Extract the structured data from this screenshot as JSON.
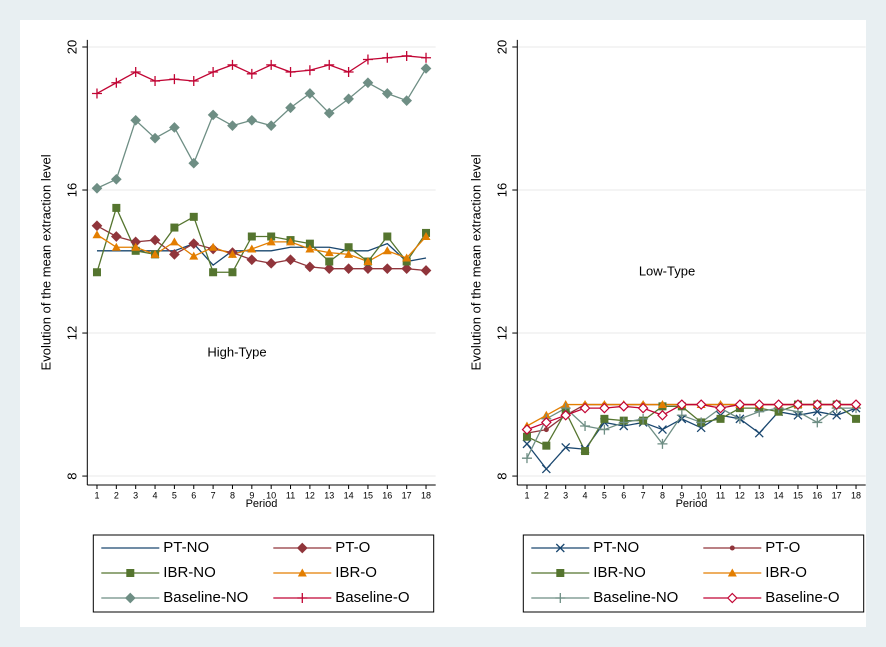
{
  "chart_data": [
    {
      "type": "line",
      "annotation": "High-Type",
      "x_label": "Period",
      "y_label": "Evolution of the mean extraction level",
      "x": [
        1,
        2,
        3,
        4,
        5,
        6,
        7,
        8,
        9,
        10,
        11,
        12,
        13,
        14,
        15,
        16,
        17,
        18
      ],
      "xlim": [
        0.5,
        18.5
      ],
      "xticks": [
        1,
        2,
        3,
        4,
        5,
        6,
        7,
        8,
        9,
        10,
        11,
        12,
        13,
        14,
        15,
        16,
        17,
        18
      ],
      "ylim": [
        7.75,
        20.2
      ],
      "yticks": [
        8,
        12,
        16,
        20
      ],
      "grid": true,
      "series": [
        {
          "name": "PT-NO",
          "color": "#1a476f",
          "marker": "none",
          "values": [
            14.3,
            14.3,
            14.3,
            14.3,
            14.3,
            14.5,
            13.9,
            14.3,
            14.3,
            14.3,
            14.4,
            14.4,
            14.4,
            14.3,
            14.3,
            14.5,
            14.0,
            14.1
          ]
        },
        {
          "name": "PT-O",
          "color": "#90353b",
          "marker": "diamond",
          "values": [
            15.0,
            14.7,
            14.55,
            14.6,
            14.2,
            14.5,
            14.35,
            14.25,
            14.05,
            13.95,
            14.05,
            13.85,
            13.8,
            13.8,
            13.8,
            13.8,
            13.8,
            13.75
          ]
        },
        {
          "name": "IBR-NO",
          "color": "#55752f",
          "marker": "square",
          "values": [
            13.7,
            15.5,
            14.3,
            14.2,
            14.95,
            15.25,
            13.7,
            13.7,
            14.7,
            14.7,
            14.6,
            14.5,
            14.0,
            14.4,
            14.0,
            14.7,
            14.0,
            14.8
          ]
        },
        {
          "name": "IBR-O",
          "color": "#e37e00",
          "marker": "triangle",
          "values": [
            14.75,
            14.4,
            14.4,
            14.2,
            14.55,
            14.15,
            14.4,
            14.2,
            14.35,
            14.55,
            14.55,
            14.35,
            14.25,
            14.2,
            14.0,
            14.3,
            14.1,
            14.7
          ]
        },
        {
          "name": "Baseline-NO",
          "color": "#6e8e84",
          "marker": "diamond",
          "values": [
            16.05,
            16.3,
            17.95,
            17.45,
            17.75,
            16.75,
            18.1,
            17.8,
            17.95,
            17.8,
            18.3,
            18.7,
            18.15,
            18.55,
            19.0,
            18.7,
            18.5,
            19.4
          ]
        },
        {
          "name": "Baseline-O",
          "color": "#c10534",
          "marker": "plus",
          "values": [
            18.7,
            19.0,
            19.3,
            19.05,
            19.1,
            19.05,
            19.3,
            19.5,
            19.25,
            19.5,
            19.3,
            19.35,
            19.5,
            19.3,
            19.65,
            19.7,
            19.75,
            19.7
          ]
        }
      ]
    },
    {
      "type": "line",
      "annotation": "Low-Type",
      "x_label": "Period",
      "y_label": "Evolution of the mean extraction level",
      "x": [
        1,
        2,
        3,
        4,
        5,
        6,
        7,
        8,
        9,
        10,
        11,
        12,
        13,
        14,
        15,
        16,
        17,
        18
      ],
      "xlim": [
        0.5,
        18.5
      ],
      "xticks": [
        1,
        2,
        3,
        4,
        5,
        6,
        7,
        8,
        9,
        10,
        11,
        12,
        13,
        14,
        15,
        16,
        17,
        18
      ],
      "ylim": [
        7.75,
        20.2
      ],
      "yticks": [
        8,
        12,
        16,
        20
      ],
      "grid": true,
      "series": [
        {
          "name": "PT-NO",
          "color": "#1a476f",
          "marker": "x",
          "values": [
            8.9,
            8.2,
            8.8,
            8.75,
            9.5,
            9.4,
            9.5,
            9.3,
            9.6,
            9.35,
            9.7,
            9.6,
            9.2,
            9.8,
            9.7,
            9.8,
            9.7,
            9.9
          ]
        },
        {
          "name": "PT-O",
          "color": "#90353b",
          "marker": "dot",
          "values": [
            9.2,
            9.3,
            9.7,
            10,
            10,
            10,
            10,
            10,
            10,
            10,
            10,
            10,
            10,
            10,
            10,
            10,
            10,
            10
          ]
        },
        {
          "name": "IBR-NO",
          "color": "#55752f",
          "marker": "square",
          "values": [
            9.1,
            8.85,
            9.8,
            8.7,
            9.6,
            9.55,
            9.55,
            9.95,
            9.95,
            9.5,
            9.6,
            9.9,
            9.9,
            9.8,
            10,
            10,
            10,
            9.6
          ]
        },
        {
          "name": "IBR-O",
          "color": "#e37e00",
          "marker": "triangle",
          "values": [
            9.4,
            9.7,
            10,
            10,
            10,
            10,
            10,
            10,
            10,
            10,
            10,
            10,
            10,
            10,
            10,
            10,
            10,
            10
          ]
        },
        {
          "name": "Baseline-NO",
          "color": "#6e8e84",
          "marker": "plus",
          "values": [
            8.5,
            9.6,
            9.9,
            9.4,
            9.3,
            9.5,
            9.6,
            8.9,
            9.7,
            9.5,
            9.9,
            9.6,
            9.8,
            9.9,
            9.8,
            9.5,
            9.9,
            9.9
          ]
        },
        {
          "name": "Baseline-O",
          "color": "#c10534",
          "marker": "hollow-diamond",
          "values": [
            9.3,
            9.5,
            9.7,
            9.9,
            9.9,
            9.95,
            9.9,
            9.7,
            10,
            10,
            9.9,
            10,
            10,
            10,
            10,
            10,
            10,
            10
          ]
        }
      ]
    }
  ]
}
